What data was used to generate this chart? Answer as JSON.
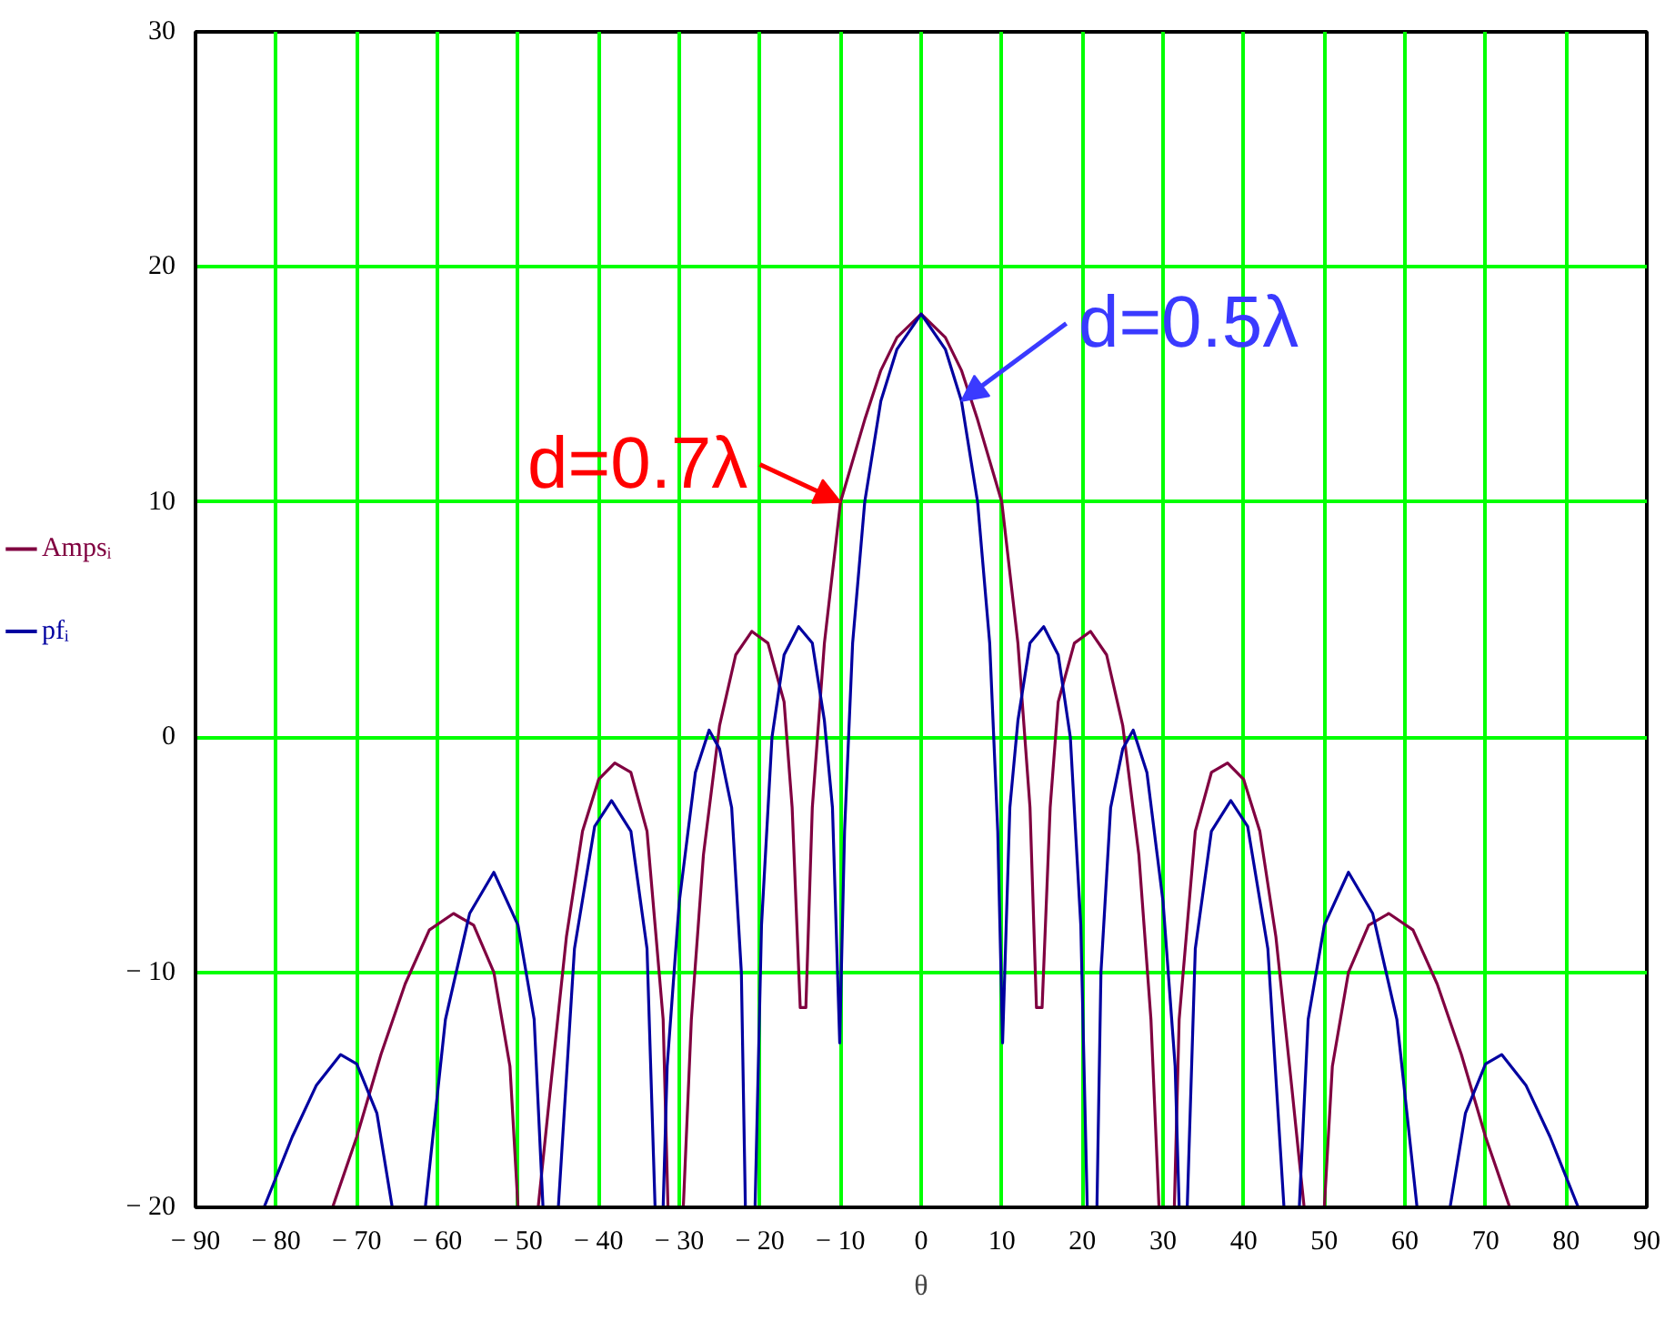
{
  "chart_data": {
    "type": "line",
    "xlabel": "θ",
    "xlim": [
      -90,
      90
    ],
    "ylim": [
      -20,
      30
    ],
    "xticks": [
      {
        "value": -90,
        "label": "− 90"
      },
      {
        "value": -80,
        "label": "− 80"
      },
      {
        "value": -70,
        "label": "− 70"
      },
      {
        "value": -60,
        "label": "− 60"
      },
      {
        "value": -50,
        "label": "− 50"
      },
      {
        "value": -40,
        "label": "− 40"
      },
      {
        "value": -30,
        "label": "− 30"
      },
      {
        "value": -20,
        "label": "− 20"
      },
      {
        "value": -10,
        "label": "− 10"
      },
      0,
      10,
      20,
      30,
      40,
      50,
      60,
      70,
      80,
      90
    ],
    "yticks": [
      {
        "value": -20,
        "label": "− 20"
      },
      {
        "value": -10,
        "label": "− 10"
      },
      0,
      10,
      20,
      30
    ],
    "grid": true,
    "legend": "left",
    "marker": "none",
    "line_style": "solid",
    "annotations": [
      {
        "text": "d=0.7λ",
        "x": -10,
        "y": 10
      },
      {
        "text": "d=0.5λ",
        "x": 5,
        "y": 14.3
      }
    ],
    "series": [
      {
        "name": "Ampsᵢ",
        "color": "#800040",
        "x": [
          -73,
          -70,
          -67,
          -64,
          -61,
          -58,
          -55.5,
          -53,
          -51,
          -50,
          -48.8,
          -47.5,
          -46,
          -44,
          -42,
          -40,
          -38,
          -36,
          -34,
          -32,
          -31.4,
          -30.5,
          -29.5,
          -28.5,
          -27,
          -25,
          -23,
          -21,
          -19,
          -17,
          -16,
          -15,
          -14.3,
          -13.5,
          -12,
          -10,
          -7,
          -5,
          -3,
          0,
          3,
          5,
          7,
          10,
          12,
          13.5,
          14.3,
          15,
          16,
          17,
          19,
          21,
          23,
          25,
          27,
          28.5,
          29.5,
          30.5,
          31.4,
          32,
          34,
          36,
          38,
          40,
          42,
          44,
          46,
          47.5,
          48.8,
          50,
          51,
          53,
          55.5,
          58,
          61,
          64,
          67,
          70,
          73
        ],
        "values": [
          -20,
          -17,
          -13.5,
          -10.5,
          -8.2,
          -7.5,
          -8,
          -10,
          -14,
          -20,
          null,
          -20,
          -15,
          -8.5,
          -4,
          -1.8,
          -1.1,
          -1.5,
          -4,
          -12,
          -20,
          null,
          -20,
          -12,
          -5,
          0.5,
          3.5,
          4.5,
          4,
          1.5,
          -3,
          -11.5,
          -11.5,
          -3,
          4,
          10,
          13.5,
          15.6,
          17,
          18,
          17,
          15.6,
          13.5,
          10,
          4,
          -3,
          -11.5,
          -11.5,
          -3,
          1.5,
          4,
          4.5,
          3.5,
          0.5,
          -5,
          -12,
          -20,
          null,
          -20,
          -12,
          -4,
          -1.5,
          -1.1,
          -1.8,
          -4,
          -8.5,
          -15,
          -20,
          null,
          -20,
          -14,
          -10,
          -8,
          -7.5,
          -8.2,
          -10.5,
          -13.5,
          -17,
          -20
        ]
      },
      {
        "name": "pfᵢ",
        "color": "#0000a0",
        "x": [
          -81.5,
          -78,
          -75,
          -72,
          -70,
          -67.5,
          -65.6,
          -63.5,
          -61.5,
          -59,
          -56,
          -53,
          -50,
          -48,
          -46.9,
          -46,
          -45,
          -43,
          -40.5,
          -38.4,
          -36,
          -34,
          -33,
          -32.5,
          -32,
          -31.5,
          -30,
          -28,
          -26.3,
          -25,
          -23.5,
          -22.3,
          -21.8,
          -21.2,
          -20.6,
          -19.8,
          -18.5,
          -17,
          -15.2,
          -13.5,
          -12,
          -11,
          -10.1,
          -9.5,
          -8.5,
          -7,
          -5,
          -3,
          0,
          3,
          5,
          7,
          8.5,
          9.5,
          10.1,
          11,
          12,
          13.5,
          15.2,
          17,
          18.5,
          19.8,
          20.6,
          21.2,
          21.8,
          22.3,
          23.5,
          25,
          26.3,
          28,
          30,
          31.5,
          32,
          32.5,
          33,
          34,
          36,
          38.4,
          40.5,
          43,
          45,
          46,
          46.9,
          48,
          50,
          53,
          56,
          59,
          61.5,
          63.5,
          65.6,
          67.5,
          70,
          72,
          75,
          78,
          81.5
        ],
        "values": [
          -20,
          -17,
          -14.8,
          -13.5,
          -13.9,
          -16,
          -20,
          null,
          -20,
          -12,
          -7.5,
          -5.75,
          -8,
          -12,
          -20,
          null,
          -20,
          -9,
          -3.8,
          -2.7,
          -4,
          -9,
          -20,
          null,
          -20,
          -14,
          -7,
          -1.5,
          0.3,
          -0.5,
          -3,
          -10,
          -20,
          null,
          -20,
          -8,
          0,
          3.5,
          4.7,
          4,
          0.7,
          -3,
          -13,
          -4,
          4,
          10,
          14.3,
          16.5,
          18,
          16.5,
          14.3,
          10,
          4,
          -4,
          -13,
          -3,
          0.7,
          4,
          4.7,
          3.5,
          0,
          -8,
          -20,
          null,
          -20,
          -10,
          -3,
          -0.5,
          0.3,
          -1.5,
          -7,
          -14,
          -20,
          null,
          -20,
          -9,
          -4,
          -2.7,
          -3.8,
          -9,
          -20,
          null,
          -20,
          -12,
          -8,
          -5.75,
          -7.5,
          -12,
          -20,
          null,
          -20,
          -16,
          -13.9,
          -13.5,
          -14.8,
          -17,
          -20
        ]
      }
    ]
  }
}
